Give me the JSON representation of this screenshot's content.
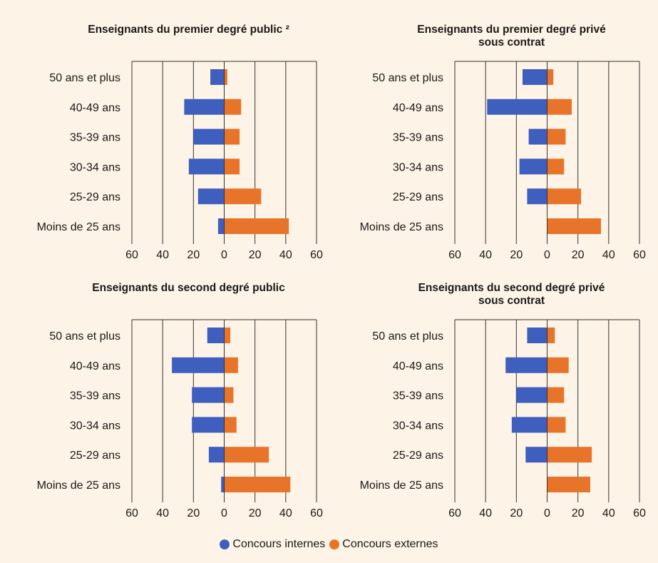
{
  "colors": {
    "internes": "#3f5fbf",
    "externes": "#e8742a"
  },
  "legend": {
    "internes": "Concours internes",
    "externes": "Concours externes"
  },
  "chart_data": [
    {
      "type": "bar",
      "orientation": "horizontal-diverging",
      "title": [
        "Enseignants du premier degré public ²"
      ],
      "categories": [
        "50 ans et plus",
        "40-49 ans",
        "35-39 ans",
        "30-34 ans",
        "25-29 ans",
        "Moins de 25 ans"
      ],
      "xlim": [
        -60,
        60
      ],
      "xticks": [
        "60",
        "40",
        "20",
        "0",
        "20",
        "40",
        "60"
      ],
      "series": [
        {
          "name": "Concours internes",
          "values": [
            -9,
            -26,
            -20,
            -23,
            -17,
            -4
          ]
        },
        {
          "name": "Concours externes",
          "values": [
            2,
            11,
            10,
            10,
            24,
            42
          ]
        }
      ]
    },
    {
      "type": "bar",
      "orientation": "horizontal-diverging",
      "title": [
        "Enseignants du premier degré privé",
        "sous contrat"
      ],
      "categories": [
        "50 ans et plus",
        "40-49 ans",
        "35-39 ans",
        "30-34 ans",
        "25-29 ans",
        "Moins de 25 ans"
      ],
      "xlim": [
        -60,
        60
      ],
      "xticks": [
        "60",
        "40",
        "20",
        "0",
        "20",
        "40",
        "60"
      ],
      "series": [
        {
          "name": "Concours internes",
          "values": [
            -16,
            -39,
            -12,
            -18,
            -13,
            0
          ]
        },
        {
          "name": "Concours externes",
          "values": [
            4,
            16,
            12,
            11,
            22,
            35
          ]
        }
      ]
    },
    {
      "type": "bar",
      "orientation": "horizontal-diverging",
      "title": [
        "Enseignants du second degré public"
      ],
      "categories": [
        "50 ans et plus",
        "40-49 ans",
        "35-39 ans",
        "30-34 ans",
        "25-29 ans",
        "Moins de 25 ans"
      ],
      "xlim": [
        -60,
        60
      ],
      "xticks": [
        "60",
        "40",
        "20",
        "0",
        "20",
        "40",
        "60"
      ],
      "series": [
        {
          "name": "Concours internes",
          "values": [
            -11,
            -34,
            -21,
            -21,
            -10,
            -2
          ]
        },
        {
          "name": "Concours externes",
          "values": [
            4,
            9,
            6,
            8,
            29,
            43
          ]
        }
      ]
    },
    {
      "type": "bar",
      "orientation": "horizontal-diverging",
      "title": [
        "Enseignants du second degré privé",
        "sous contrat"
      ],
      "categories": [
        "50 ans et plus",
        "40-49 ans",
        "35-39 ans",
        "30-34 ans",
        "25-29 ans",
        "Moins de 25 ans"
      ],
      "xlim": [
        -60,
        60
      ],
      "xticks": [
        "60",
        "40",
        "20",
        "0",
        "20",
        "40",
        "60"
      ],
      "series": [
        {
          "name": "Concours internes",
          "values": [
            -13,
            -27,
            -20,
            -23,
            -14,
            0
          ]
        },
        {
          "name": "Concours externes",
          "values": [
            5,
            14,
            11,
            12,
            29,
            28
          ]
        }
      ]
    }
  ]
}
